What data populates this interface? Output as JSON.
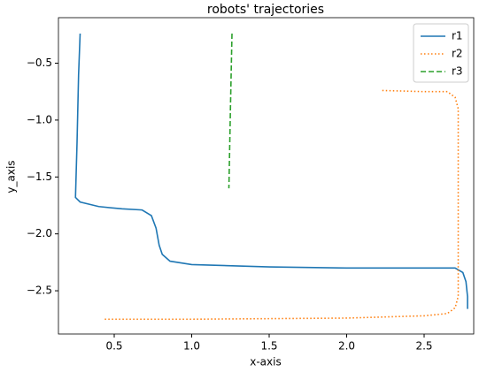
{
  "chart_data": {
    "type": "line",
    "title": "robots' trajectories",
    "x_label": "x-axis",
    "y_label": "y_axis",
    "xlim": [
      0.14,
      2.82
    ],
    "ylim": [
      -2.88,
      -0.1
    ],
    "xticks": [
      0.5,
      {
        "value": 1,
        "label": "1.0"
      },
      1.5,
      {
        "value": 2,
        "label": "2.0"
      },
      2.5
    ],
    "yticks": [
      {
        "value": -0.5,
        "label": "−0.5"
      },
      {
        "value": -1,
        "label": "−1.0"
      },
      {
        "value": -1.5,
        "label": "−1.5"
      },
      {
        "value": -2,
        "label": "−2.0"
      },
      {
        "value": -2.5,
        "label": "−2.5"
      }
    ],
    "legend": "upper right",
    "series": [
      {
        "name": "r1",
        "color": "#1f77b4",
        "linestyle": "solid",
        "x": [
          0.28,
          0.27,
          0.26,
          0.25,
          0.28,
          0.4,
          0.55,
          0.68,
          0.74,
          0.77,
          0.79,
          0.81,
          0.86,
          1.0,
          1.5,
          2.0,
          2.5,
          2.7,
          2.75,
          2.77,
          2.78,
          2.78
        ],
        "values": [
          -0.24,
          -0.6,
          -1.2,
          -1.68,
          -1.72,
          -1.76,
          -1.78,
          -1.79,
          -1.84,
          -1.95,
          -2.1,
          -2.18,
          -2.24,
          -2.27,
          -2.29,
          -2.3,
          -2.3,
          -2.3,
          -2.34,
          -2.42,
          -2.55,
          -2.66
        ]
      },
      {
        "name": "r2",
        "color": "#ff7f0e",
        "linestyle": "dotted",
        "x": [
          2.23,
          2.5,
          2.65,
          2.7,
          2.72,
          2.72,
          2.72,
          2.7,
          2.65,
          2.5,
          2.0,
          1.0,
          0.43
        ],
        "values": [
          -0.74,
          -0.75,
          -0.75,
          -0.8,
          -0.9,
          -1.5,
          -2.55,
          -2.65,
          -2.7,
          -2.72,
          -2.74,
          -2.75,
          -2.75
        ]
      },
      {
        "name": "r3",
        "color": "#2ca02c",
        "linestyle": "dashed",
        "x": [
          1.26,
          1.25,
          1.24
        ],
        "values": [
          -0.24,
          -0.9,
          -1.6
        ]
      }
    ]
  }
}
